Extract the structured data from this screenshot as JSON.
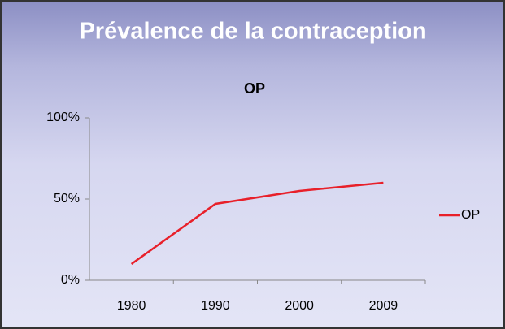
{
  "slide_title": "Prévalence de la contraception",
  "chart_data": {
    "type": "line",
    "title": "OP",
    "categories": [
      "1980",
      "1990",
      "2000",
      "2009"
    ],
    "series": [
      {
        "name": "OP",
        "color": "#e8202a",
        "values": [
          10,
          47,
          55,
          60
        ]
      }
    ],
    "ylim": [
      0,
      100
    ],
    "yticks": [
      {
        "value": 0,
        "label": "0%"
      },
      {
        "value": 50,
        "label": "50%"
      },
      {
        "value": 100,
        "label": "100%"
      }
    ],
    "legend": "right",
    "grid": false
  }
}
